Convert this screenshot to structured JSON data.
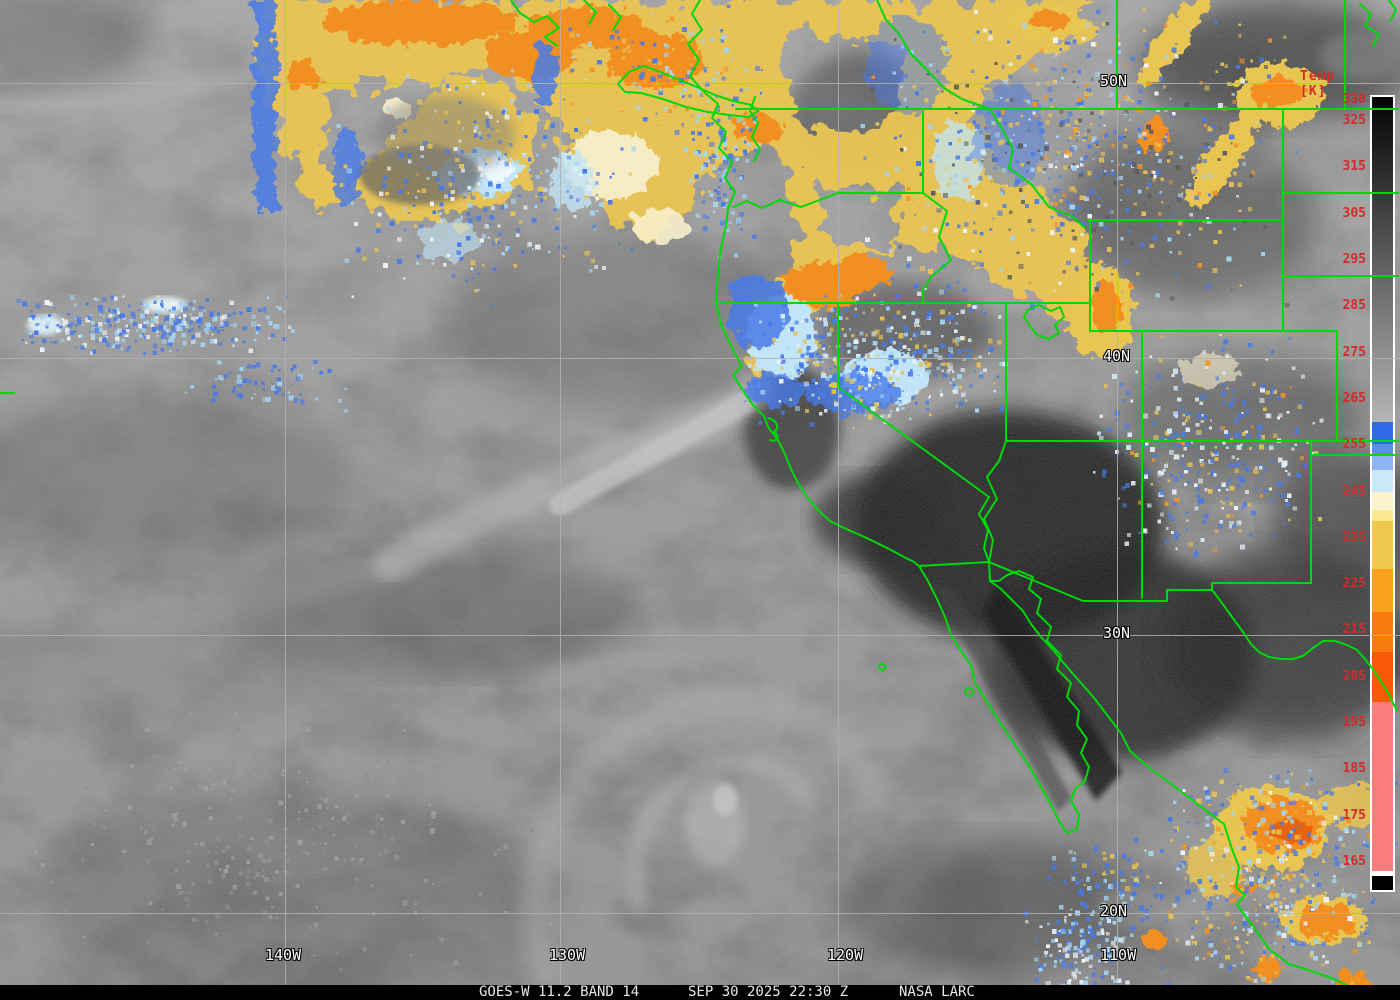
{
  "caption": {
    "product": "GOES-W 11.2 BAND 14",
    "datetime": "SEP 30 2025 22:30 Z",
    "credit": "NASA LARC"
  },
  "colorbar": {
    "title": "Temp [K]",
    "labels": [
      "330",
      "325",
      "315",
      "305",
      "295",
      "285",
      "275",
      "265",
      "255",
      "245",
      "235",
      "225",
      "215",
      "205",
      "195",
      "185",
      "175",
      "165"
    ],
    "label_color": "#d32b2b",
    "enhancement_colors": [
      "#2e6ae8",
      "#8fb4f6",
      "#cbe7fa",
      "#fbf3cd",
      "#eec94b",
      "#f9a01d",
      "#f87c10",
      "#f85a06",
      "#fa7d7c"
    ]
  },
  "grid": {
    "lat_labels": [
      "50N",
      "40N",
      "30N",
      "20N"
    ],
    "lon_labels": [
      "140W",
      "130W",
      "120W",
      "110W"
    ],
    "line_color": "#b2b2b2",
    "label_color": "#ffffff"
  },
  "map": {
    "border_color": "#00d80a"
  }
}
